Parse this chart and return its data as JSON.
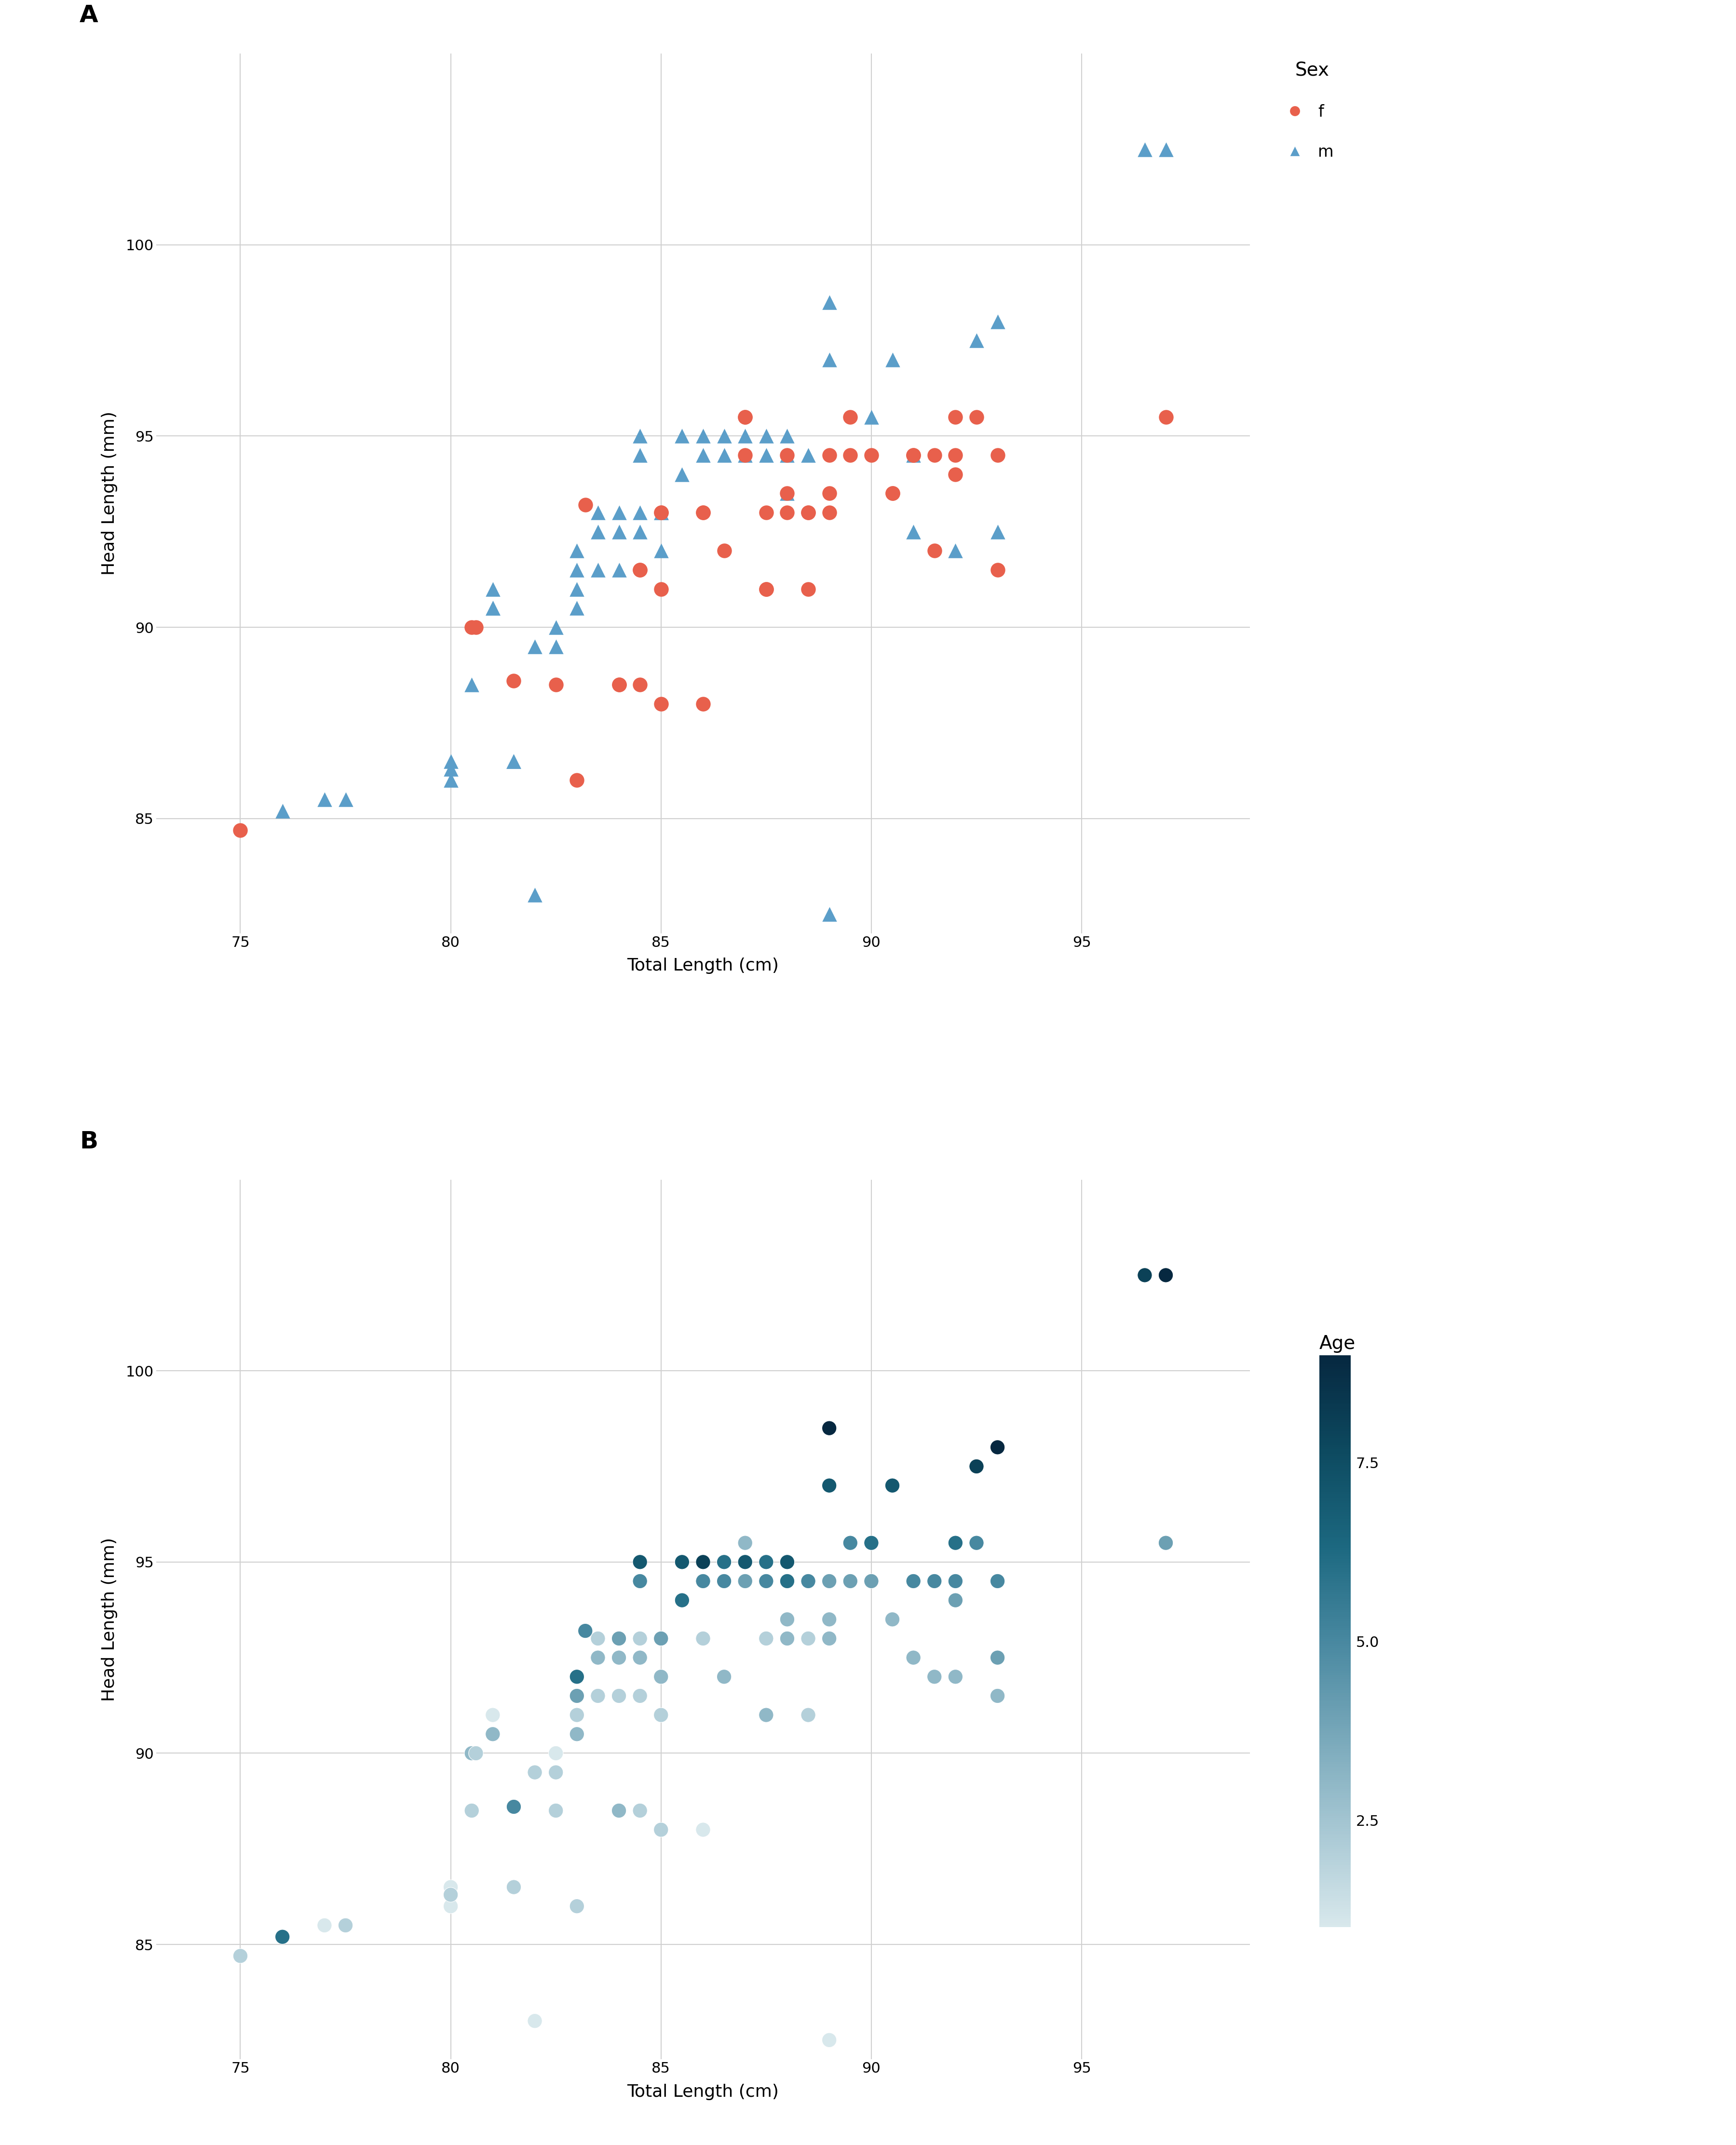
{
  "title_A": "A",
  "title_B": "B",
  "xlabel": "Total Length (cm)",
  "ylabel": "Head Length (mm)",
  "female_color": "#E8604C",
  "male_color": "#5B9EC9",
  "background_color": "#FFFFFF",
  "grid_color": "#D0D0D0",
  "xlim": [
    73,
    99
  ],
  "ylim": [
    82,
    105
  ],
  "xticks": [
    75,
    80,
    85,
    90,
    95
  ],
  "yticks": [
    85,
    90,
    95,
    100
  ],
  "marker_size": 480,
  "female_data": [
    [
      75.0,
      84.7
    ],
    [
      80.5,
      90.0
    ],
    [
      80.6,
      90.0
    ],
    [
      81.5,
      88.6
    ],
    [
      82.5,
      88.5
    ],
    [
      83.0,
      86.0
    ],
    [
      83.2,
      93.2
    ],
    [
      84.0,
      88.5
    ],
    [
      84.0,
      88.5
    ],
    [
      84.5,
      88.5
    ],
    [
      84.5,
      91.5
    ],
    [
      84.5,
      91.5
    ],
    [
      85.0,
      88.0
    ],
    [
      85.0,
      93.0
    ],
    [
      85.0,
      93.0
    ],
    [
      85.0,
      91.0
    ],
    [
      86.0,
      88.0
    ],
    [
      86.0,
      93.0
    ],
    [
      86.0,
      93.0
    ],
    [
      86.5,
      92.0
    ],
    [
      87.0,
      95.5
    ],
    [
      87.0,
      95.5
    ],
    [
      87.0,
      94.5
    ],
    [
      87.5,
      91.0
    ],
    [
      87.5,
      91.0
    ],
    [
      87.5,
      93.0
    ],
    [
      88.0,
      93.0
    ],
    [
      88.0,
      93.5
    ],
    [
      88.0,
      94.5
    ],
    [
      88.5,
      91.0
    ],
    [
      88.5,
      93.0
    ],
    [
      88.5,
      93.0
    ],
    [
      89.0,
      94.5
    ],
    [
      89.0,
      93.5
    ],
    [
      89.0,
      93.0
    ],
    [
      89.5,
      94.5
    ],
    [
      89.5,
      95.5
    ],
    [
      90.0,
      94.5
    ],
    [
      90.5,
      93.5
    ],
    [
      90.5,
      93.5
    ],
    [
      91.0,
      94.5
    ],
    [
      91.0,
      94.5
    ],
    [
      91.5,
      94.5
    ],
    [
      91.5,
      92.0
    ],
    [
      92.0,
      94.5
    ],
    [
      92.0,
      94.0
    ],
    [
      92.0,
      95.5
    ],
    [
      92.5,
      95.5
    ],
    [
      93.0,
      94.5
    ],
    [
      93.0,
      91.5
    ],
    [
      97.0,
      95.5
    ]
  ],
  "male_data": [
    [
      76.0,
      85.2
    ],
    [
      77.0,
      85.5
    ],
    [
      77.5,
      85.5
    ],
    [
      80.0,
      86.0
    ],
    [
      80.0,
      86.5
    ],
    [
      80.0,
      86.3
    ],
    [
      80.5,
      88.5
    ],
    [
      81.0,
      90.5
    ],
    [
      81.0,
      90.5
    ],
    [
      81.0,
      91.0
    ],
    [
      81.5,
      86.5
    ],
    [
      81.5,
      86.5
    ],
    [
      82.0,
      83.0
    ],
    [
      82.0,
      89.5
    ],
    [
      82.5,
      89.5
    ],
    [
      82.5,
      90.0
    ],
    [
      83.0,
      90.5
    ],
    [
      83.0,
      91.0
    ],
    [
      83.0,
      91.5
    ],
    [
      83.0,
      92.0
    ],
    [
      83.5,
      91.5
    ],
    [
      83.5,
      92.5
    ],
    [
      83.5,
      93.0
    ],
    [
      84.0,
      91.5
    ],
    [
      84.0,
      92.5
    ],
    [
      84.0,
      93.0
    ],
    [
      84.5,
      92.5
    ],
    [
      84.5,
      93.0
    ],
    [
      84.5,
      94.5
    ],
    [
      84.5,
      95.0
    ],
    [
      85.0,
      93.0
    ],
    [
      85.0,
      93.0
    ],
    [
      85.0,
      92.0
    ],
    [
      85.5,
      94.0
    ],
    [
      85.5,
      95.0
    ],
    [
      86.0,
      94.5
    ],
    [
      86.0,
      95.0
    ],
    [
      86.5,
      94.5
    ],
    [
      86.5,
      95.0
    ],
    [
      87.0,
      94.5
    ],
    [
      87.0,
      95.0
    ],
    [
      87.5,
      94.5
    ],
    [
      87.5,
      95.0
    ],
    [
      88.0,
      93.5
    ],
    [
      88.0,
      94.5
    ],
    [
      88.0,
      95.0
    ],
    [
      88.5,
      94.5
    ],
    [
      89.0,
      82.5
    ],
    [
      89.0,
      97.0
    ],
    [
      89.0,
      98.5
    ],
    [
      90.0,
      95.5
    ],
    [
      90.5,
      97.0
    ],
    [
      91.0,
      92.5
    ],
    [
      91.0,
      94.5
    ],
    [
      92.0,
      92.0
    ],
    [
      92.5,
      97.5
    ],
    [
      93.0,
      98.0
    ],
    [
      93.0,
      92.5
    ],
    [
      96.5,
      102.5
    ],
    [
      97.0,
      102.5
    ]
  ],
  "possum_data": [
    [
      75.0,
      84.7,
      2.0
    ],
    [
      76.0,
      85.2,
      6.0
    ],
    [
      77.0,
      85.5,
      1.0
    ],
    [
      77.5,
      85.5,
      2.0
    ],
    [
      80.0,
      86.0,
      1.0
    ],
    [
      80.0,
      86.5,
      1.0
    ],
    [
      80.0,
      86.3,
      2.0
    ],
    [
      80.5,
      88.5,
      2.0
    ],
    [
      80.5,
      90.0,
      3.0
    ],
    [
      80.6,
      90.0,
      2.0
    ],
    [
      81.0,
      90.5,
      2.0
    ],
    [
      81.0,
      90.5,
      3.0
    ],
    [
      81.0,
      91.0,
      1.0
    ],
    [
      81.5,
      86.5,
      1.0
    ],
    [
      81.5,
      86.5,
      2.0
    ],
    [
      81.5,
      88.6,
      5.0
    ],
    [
      82.0,
      83.0,
      1.0
    ],
    [
      82.0,
      89.5,
      2.0
    ],
    [
      82.5,
      88.5,
      3.0
    ],
    [
      82.5,
      88.5,
      2.0
    ],
    [
      82.5,
      89.5,
      2.0
    ],
    [
      82.5,
      90.0,
      1.0
    ],
    [
      83.0,
      86.0,
      2.0
    ],
    [
      83.0,
      90.5,
      3.0
    ],
    [
      83.0,
      91.0,
      2.0
    ],
    [
      83.0,
      91.5,
      4.0
    ],
    [
      83.0,
      92.0,
      6.0
    ],
    [
      83.2,
      93.2,
      5.0
    ],
    [
      83.5,
      91.5,
      2.0
    ],
    [
      83.5,
      92.5,
      3.0
    ],
    [
      83.5,
      93.0,
      2.0
    ],
    [
      84.0,
      88.5,
      2.0
    ],
    [
      84.0,
      88.5,
      3.0
    ],
    [
      84.0,
      91.5,
      2.0
    ],
    [
      84.0,
      92.5,
      3.0
    ],
    [
      84.0,
      93.0,
      4.0
    ],
    [
      84.5,
      88.5,
      2.0
    ],
    [
      84.5,
      91.5,
      1.0
    ],
    [
      84.5,
      91.5,
      2.0
    ],
    [
      84.5,
      92.5,
      3.0
    ],
    [
      84.5,
      93.0,
      2.0
    ],
    [
      84.5,
      94.5,
      5.0
    ],
    [
      84.5,
      95.0,
      7.0
    ],
    [
      85.0,
      88.0,
      2.0
    ],
    [
      85.0,
      93.0,
      3.0
    ],
    [
      85.0,
      93.0,
      4.0
    ],
    [
      85.0,
      91.0,
      2.0
    ],
    [
      85.0,
      92.0,
      3.0
    ],
    [
      85.5,
      94.0,
      6.0
    ],
    [
      85.5,
      95.0,
      7.0
    ],
    [
      86.0,
      88.0,
      1.0
    ],
    [
      86.0,
      93.0,
      3.0
    ],
    [
      86.0,
      93.0,
      2.0
    ],
    [
      86.0,
      94.5,
      5.0
    ],
    [
      86.0,
      95.0,
      8.0
    ],
    [
      86.5,
      92.0,
      3.0
    ],
    [
      86.5,
      94.5,
      5.0
    ],
    [
      86.5,
      95.0,
      6.0
    ],
    [
      87.0,
      95.5,
      4.0
    ],
    [
      87.0,
      95.5,
      3.0
    ],
    [
      87.0,
      94.5,
      5.0
    ],
    [
      87.0,
      94.5,
      4.0
    ],
    [
      87.0,
      95.0,
      7.0
    ],
    [
      87.5,
      91.0,
      2.0
    ],
    [
      87.5,
      91.0,
      3.0
    ],
    [
      87.5,
      93.0,
      2.0
    ],
    [
      87.5,
      94.5,
      5.0
    ],
    [
      87.5,
      95.0,
      6.0
    ],
    [
      88.0,
      93.0,
      3.0
    ],
    [
      88.0,
      93.5,
      4.0
    ],
    [
      88.0,
      94.5,
      5.0
    ],
    [
      88.0,
      93.5,
      3.0
    ],
    [
      88.0,
      94.5,
      6.0
    ],
    [
      88.0,
      95.0,
      7.0
    ],
    [
      88.5,
      91.0,
      2.0
    ],
    [
      88.5,
      93.0,
      3.0
    ],
    [
      88.5,
      93.0,
      2.0
    ],
    [
      88.5,
      94.5,
      5.0
    ],
    [
      89.0,
      82.5,
      1.0
    ],
    [
      89.0,
      94.5,
      4.0
    ],
    [
      89.0,
      93.5,
      3.0
    ],
    [
      89.0,
      93.0,
      3.0
    ],
    [
      89.0,
      97.0,
      7.0
    ],
    [
      89.0,
      98.5,
      9.0
    ],
    [
      89.5,
      94.5,
      4.0
    ],
    [
      89.5,
      95.5,
      5.0
    ],
    [
      90.0,
      94.5,
      4.0
    ],
    [
      90.0,
      95.5,
      6.0
    ],
    [
      90.5,
      93.5,
      3.0
    ],
    [
      90.5,
      93.5,
      3.0
    ],
    [
      90.5,
      97.0,
      7.0
    ],
    [
      91.0,
      94.5,
      4.0
    ],
    [
      91.0,
      94.5,
      5.0
    ],
    [
      91.0,
      92.5,
      3.0
    ],
    [
      91.0,
      94.5,
      5.0
    ],
    [
      91.5,
      94.5,
      5.0
    ],
    [
      91.5,
      92.0,
      3.0
    ],
    [
      92.0,
      94.5,
      5.0
    ],
    [
      92.0,
      94.0,
      4.0
    ],
    [
      92.0,
      95.5,
      6.0
    ],
    [
      92.0,
      92.0,
      3.0
    ],
    [
      92.5,
      95.5,
      5.0
    ],
    [
      92.5,
      97.5,
      8.0
    ],
    [
      93.0,
      94.5,
      5.0
    ],
    [
      93.0,
      91.5,
      3.0
    ],
    [
      93.0,
      98.0,
      9.0
    ],
    [
      93.0,
      92.5,
      4.0
    ],
    [
      96.5,
      102.5,
      8.0
    ],
    [
      97.0,
      95.5,
      4.0
    ],
    [
      97.0,
      102.5,
      9.0
    ]
  ],
  "age_cmap_min": 1.0,
  "age_cmap_max": 9.0,
  "colorbar_ticks": [
    2.5,
    5.0,
    7.5
  ],
  "colorbar_label": "Age",
  "legend_title_A": "Sex",
  "cmap_colors": [
    "#D8E8EC",
    "#A8C8D4",
    "#78A8BA",
    "#4888A0",
    "#1C6880",
    "#0D4A60",
    "#062840"
  ],
  "tick_fontsize": 22,
  "label_fontsize": 26,
  "title_fontsize": 36,
  "legend_fontsize": 24,
  "legend_title_fontsize": 28
}
